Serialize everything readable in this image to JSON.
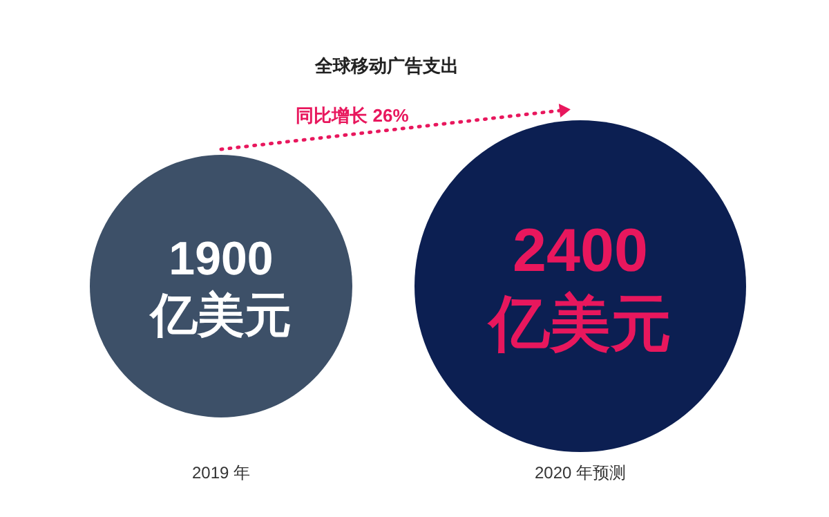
{
  "chart_data": {
    "type": "other",
    "title": "全球移动广告支出",
    "categories": [
      "2019 年",
      "2020 年预测"
    ],
    "values": [
      1900,
      2400
    ],
    "colors": [
      "#3d5068",
      "#0c1f52"
    ],
    "value_labels": [
      "1900 亿美元",
      "2400 亿美元"
    ],
    "annotations": [
      "同比增长 26%"
    ]
  }
}
